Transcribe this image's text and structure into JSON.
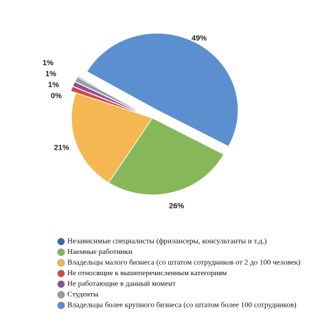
{
  "chart_data": {
    "type": "pie",
    "categories": [
      "Независимые специалисты (фрилансеры, консультанты и т.д.)",
      "Наемные работники",
      "Владельцы малого бизнеса (со штатом сотрудников от 2 до 100 человек)",
      "Не относящие к вышеперечисленным категориям",
      "Не работающие в данный момент",
      "Студенты",
      "Владельцы более крупного бизнеса (со штатом более 100 сотрудников)"
    ],
    "values": [
      0,
      26,
      21,
      1,
      1,
      1,
      49
    ],
    "value_labels": [
      "0%",
      "26%",
      "21%",
      "1%",
      "1%",
      "1%",
      "49%"
    ],
    "colors": [
      "#3d6ba6",
      "#86b85a",
      "#f4b752",
      "#d8473c",
      "#8c4f9c",
      "#9c9c9c",
      "#5b8fd0"
    ]
  }
}
